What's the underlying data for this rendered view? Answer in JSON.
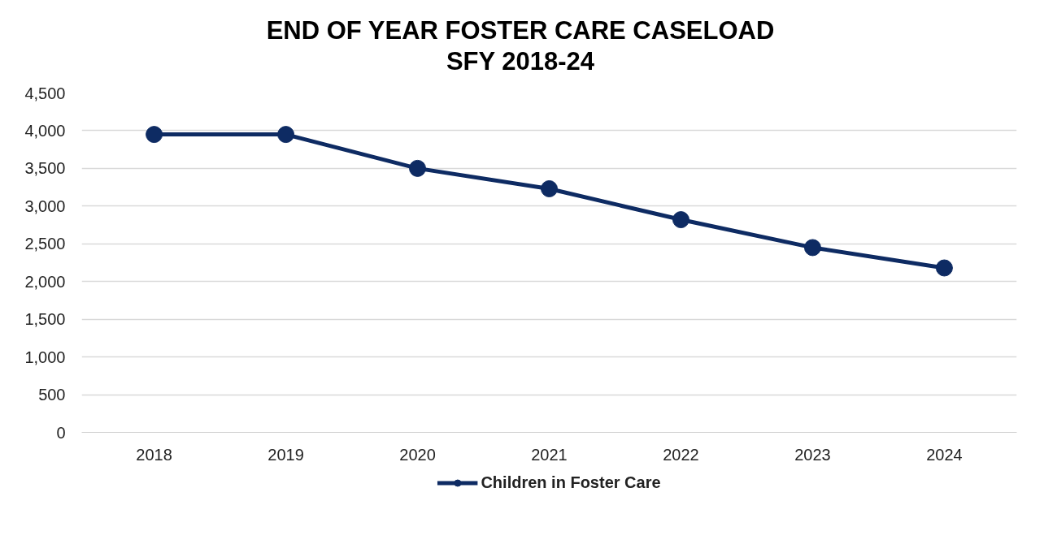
{
  "chart_data": {
    "type": "line",
    "title": "END OF YEAR FOSTER CARE CASELOAD\nSFY 2018-24",
    "categories": [
      "2018",
      "2019",
      "2020",
      "2021",
      "2022",
      "2023",
      "2024"
    ],
    "series": [
      {
        "name": "Children in Foster Care",
        "color": "#0e2b63",
        "values": [
          3950,
          3950,
          3500,
          3230,
          2820,
          2450,
          2180
        ]
      }
    ],
    "ylim": [
      0,
      4500
    ],
    "yticks": [
      {
        "value": 0,
        "label": "0"
      },
      {
        "value": 500,
        "label": "500"
      },
      {
        "value": 1000,
        "label": "1,000"
      },
      {
        "value": 1500,
        "label": "1,500"
      },
      {
        "value": 2000,
        "label": "2,000"
      },
      {
        "value": 2500,
        "label": "2,500"
      },
      {
        "value": 3000,
        "label": "3,000"
      },
      {
        "value": 3500,
        "label": "3,500"
      },
      {
        "value": 4000,
        "label": "4,000"
      },
      {
        "value": 4500,
        "label": "4,500"
      }
    ],
    "grid": "y",
    "legend": "bottom",
    "marker": "circle",
    "line_style": "solid"
  }
}
